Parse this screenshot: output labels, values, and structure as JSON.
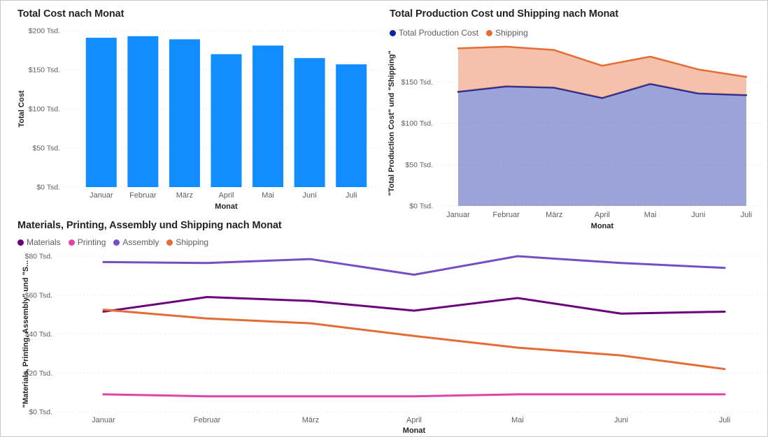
{
  "page": {
    "background": "#FFFFFF",
    "border_color": "#C6C8CA",
    "text_color_title": "#252423",
    "text_color_labels": "#605E5C"
  },
  "chart_data": [
    {
      "type": "bar",
      "title": "Total Cost nach Monat",
      "xlabel": "Monat",
      "ylabel": "Total Cost",
      "categories": [
        "Januar",
        "Februar",
        "März",
        "April",
        "Mai",
        "Juni",
        "Juli"
      ],
      "values": [
        191,
        193,
        189,
        170,
        181,
        165,
        157
      ],
      "bar_color": "#118DFF",
      "ylim": [
        0,
        200
      ],
      "ytick_step": 50,
      "ytick_labels": [
        "$0 Tsd.",
        "$50 Tsd.",
        "$100 Tsd.",
        "$150 Tsd.",
        "$200 Tsd."
      ],
      "grid": "dotted-horizontal",
      "legend_position": "none"
    },
    {
      "type": "area",
      "stacked": true,
      "title": "Total Production Cost und Shipping nach Monat",
      "xlabel": "Monat",
      "ylabel": "\"Total Production Cost\" und \"Shipping\"",
      "categories": [
        "Januar",
        "Februar",
        "März",
        "April",
        "Mai",
        "Juni",
        "Juli"
      ],
      "series": [
        {
          "name": "Total Production Cost",
          "color": "#12239E",
          "values": [
            138,
            144.5,
            143,
            130.5,
            147.5,
            136,
            134
          ]
        },
        {
          "name": "Shipping",
          "color": "#E66C37",
          "values": [
            52.5,
            48,
            45.5,
            39,
            33,
            29,
            22
          ]
        }
      ],
      "fill_opacity": 0.42,
      "ylim": [
        0,
        200
      ],
      "ytick_step": 50,
      "ytick_labels": [
        "$0 Tsd.",
        "$50 Tsd.",
        "$100 Tsd.",
        "$150 Tsd."
      ],
      "grid": "dotted-horizontal",
      "legend_position": "top-left"
    },
    {
      "type": "line",
      "title": "Materials, Printing, Assembly und Shipping nach Monat",
      "xlabel": "Monat",
      "ylabel": "\"Materials, Printing, Assembly\" und \"S...",
      "categories": [
        "Januar",
        "Februar",
        "März",
        "April",
        "Mai",
        "Juni",
        "Juli"
      ],
      "series": [
        {
          "name": "Materials",
          "color": "#6B007B",
          "values": [
            51.5,
            59,
            57,
            52,
            58.5,
            50.5,
            51.5
          ]
        },
        {
          "name": "Printing",
          "color": "#E044A7",
          "values": [
            9,
            8,
            8,
            8,
            9,
            9,
            9
          ]
        },
        {
          "name": "Assembly",
          "color": "#744EC2",
          "values": [
            77,
            76.5,
            78.5,
            70.5,
            80,
            76.5,
            74
          ]
        },
        {
          "name": "Shipping",
          "color": "#E66C37",
          "values": [
            52.5,
            48,
            45.5,
            39,
            33,
            29,
            22
          ]
        }
      ],
      "ylim": [
        0,
        80
      ],
      "ytick_step": 20,
      "ytick_labels": [
        "$0 Tsd.",
        "$20 Tsd.",
        "$40 Tsd.",
        "$60 Tsd.",
        "$80 Tsd."
      ],
      "grid": "dotted-horizontal",
      "legend_position": "top-left"
    }
  ]
}
